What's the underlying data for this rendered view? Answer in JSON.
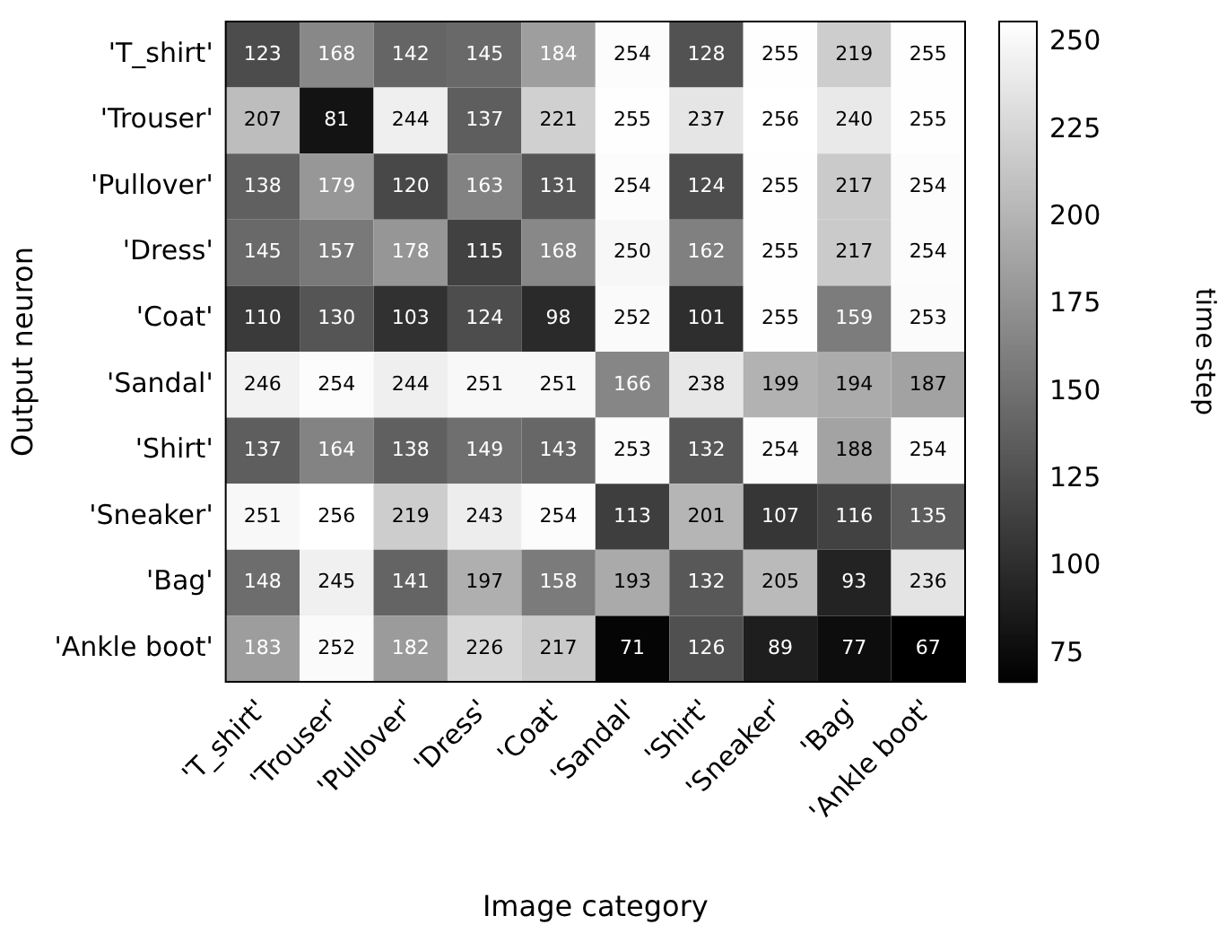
{
  "chart_data": {
    "type": "heatmap",
    "xlabel": "Image category",
    "ylabel": "Output neuron",
    "clabel": "time step",
    "categories": [
      "'T_shirt'",
      "'Trouser'",
      "'Pullover'",
      "'Dress'",
      "'Coat'",
      "'Sandal'",
      "'Shirt'",
      "'Sneaker'",
      "'Bag'",
      "'Ankle boot'"
    ],
    "y_categories": [
      "'T_shirt'",
      "'Trouser'",
      "'Pullover'",
      "'Dress'",
      "'Coat'",
      "'Sandal'",
      "'Shirt'",
      "'Sneaker'",
      "'Bag'",
      "'Ankle boot'"
    ],
    "cells": [
      [
        123,
        168,
        142,
        145,
        184,
        254,
        128,
        255,
        219,
        255
      ],
      [
        207,
        81,
        244,
        137,
        221,
        255,
        237,
        256,
        240,
        255
      ],
      [
        138,
        179,
        120,
        163,
        131,
        254,
        124,
        255,
        217,
        254
      ],
      [
        145,
        157,
        178,
        115,
        168,
        250,
        162,
        255,
        217,
        254
      ],
      [
        110,
        130,
        103,
        124,
        98,
        252,
        101,
        255,
        159,
        253
      ],
      [
        246,
        254,
        244,
        251,
        251,
        166,
        238,
        199,
        194,
        187
      ],
      [
        137,
        164,
        138,
        149,
        143,
        253,
        132,
        254,
        188,
        254
      ],
      [
        251,
        256,
        219,
        243,
        254,
        113,
        201,
        107,
        116,
        135
      ],
      [
        148,
        245,
        141,
        197,
        158,
        193,
        132,
        205,
        93,
        236
      ],
      [
        183,
        252,
        182,
        226,
        217,
        71,
        126,
        89,
        77,
        67
      ]
    ],
    "clim": [
      67,
      256
    ],
    "cticks": [
      75,
      100,
      125,
      150,
      175,
      200,
      225,
      250
    ],
    "data_labels": true
  }
}
